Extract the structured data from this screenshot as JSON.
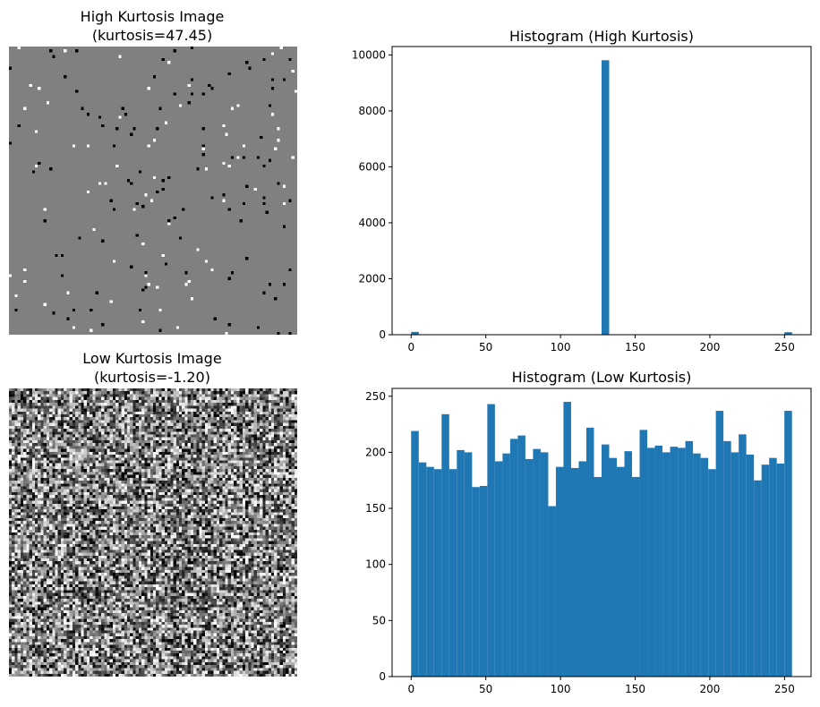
{
  "panels": {
    "high_image": {
      "title_line1": "High Kurtosis Image",
      "title_line2": "(kurtosis=47.45)",
      "background_gray": 128
    },
    "low_image": {
      "title_line1": "Low Kurtosis Image",
      "title_line2": "(kurtosis=-1.20)"
    }
  },
  "colors": {
    "bar": "#1f77b4"
  },
  "chart_data": [
    {
      "type": "bar",
      "title": "Histogram (High Kurtosis)",
      "bins": 50,
      "bin_range": [
        0,
        255
      ],
      "values": [
        100,
        0,
        0,
        0,
        0,
        0,
        0,
        0,
        0,
        0,
        0,
        0,
        0,
        0,
        0,
        0,
        0,
        0,
        0,
        0,
        0,
        0,
        0,
        0,
        0,
        9810,
        0,
        0,
        0,
        0,
        0,
        0,
        0,
        0,
        0,
        0,
        0,
        0,
        0,
        0,
        0,
        0,
        0,
        0,
        0,
        0,
        0,
        0,
        0,
        90
      ],
      "xticks": [
        0,
        50,
        100,
        150,
        200,
        250
      ],
      "yticks": [
        0,
        2000,
        4000,
        6000,
        8000,
        10000
      ],
      "xlim": [
        -12.75,
        267.75
      ],
      "ylim": [
        0,
        10300
      ]
    },
    {
      "type": "bar",
      "title": "Histogram (Low Kurtosis)",
      "bins": 50,
      "bin_range": [
        0,
        255
      ],
      "values": [
        219,
        191,
        187,
        185,
        234,
        185,
        202,
        200,
        169,
        170,
        243,
        192,
        199,
        212,
        215,
        194,
        203,
        200,
        152,
        187,
        245,
        186,
        192,
        222,
        178,
        207,
        195,
        187,
        201,
        178,
        220,
        204,
        206,
        200,
        205,
        204,
        210,
        199,
        195,
        185,
        237,
        210,
        200,
        216,
        198,
        175,
        189,
        195,
        190,
        237
      ],
      "xticks": [
        0,
        50,
        100,
        150,
        200,
        250
      ],
      "yticks": [
        0,
        50,
        100,
        150,
        200,
        250
      ],
      "xlim": [
        -12.75,
        267.75
      ],
      "ylim": [
        0,
        257
      ]
    }
  ]
}
